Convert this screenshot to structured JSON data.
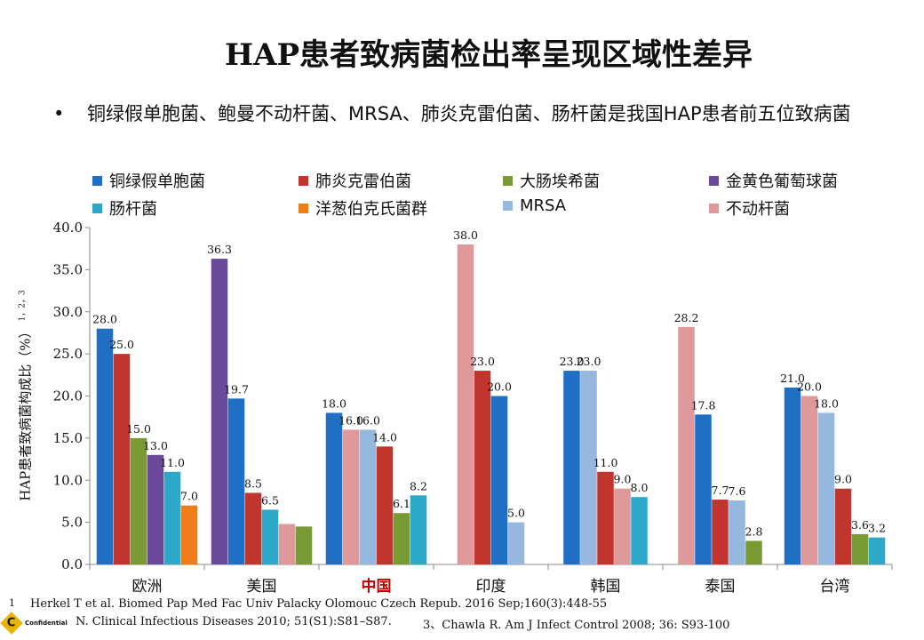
{
  "title": "HAP患者致病菌检出率呈现区域性差异",
  "bullet": {
    "dot": "•",
    "text": "铜绿假单胞菌、鲍曼不动杆菌、MRSA、肺炎克雷伯菌、肠杆菌是我国HAP患者前五位致病菌"
  },
  "legend": [
    {
      "label": "铜绿假单胞菌",
      "color": "#1f6fc5"
    },
    {
      "label": "肺炎克雷伯菌",
      "color": "#c0352e"
    },
    {
      "label": "大肠埃希菌",
      "color": "#7a9a33"
    },
    {
      "label": "金黄色葡萄球菌",
      "color": "#6a4a9a"
    },
    {
      "label": "肠杆菌",
      "color": "#2ea8c8"
    },
    {
      "label": "洋葱伯克氏菌群",
      "color": "#f07c1a"
    },
    {
      "label": "MRSA",
      "color": "#96b8de"
    },
    {
      "label": "不动杆菌",
      "color": "#e0999a"
    }
  ],
  "ylabel": {
    "main": "HAP患者致病菌构成比（%）",
    "sup": "1，2，3"
  },
  "chart_data": {
    "type": "bar",
    "ylim": [
      0,
      40
    ],
    "yticks": [
      "0.0",
      "5.0",
      "10.0",
      "15.0",
      "20.0",
      "25.0",
      "30.0",
      "35.0",
      "40.0"
    ],
    "categories": [
      "欧洲",
      "美国",
      "中国",
      "印度",
      "韩国",
      "泰国",
      "台湾"
    ],
    "highlight_category": "中国",
    "highlight_color": "#c00000",
    "groups": [
      {
        "category": "欧洲",
        "bars": [
          {
            "series": "铜绿假单胞菌",
            "value": 28.0,
            "label": "28.0"
          },
          {
            "series": "肺炎克雷伯菌",
            "value": 25.0,
            "label": "25.0"
          },
          {
            "series": "大肠埃希菌",
            "value": 15.0,
            "label": "15.0"
          },
          {
            "series": "金黄色葡萄球菌",
            "value": 13.0,
            "label": "13.0"
          },
          {
            "series": "肠杆菌",
            "value": 11.0,
            "label": "11.0"
          },
          {
            "series": "洋葱伯克氏菌群",
            "value": 7.0,
            "label": "7.0"
          }
        ]
      },
      {
        "category": "美国",
        "bars": [
          {
            "series": "金黄色葡萄球菌",
            "value": 36.3,
            "label": "36.3"
          },
          {
            "series": "铜绿假单胞菌",
            "value": 19.7,
            "label": "19.7"
          },
          {
            "series": "肺炎克雷伯菌",
            "value": 8.5,
            "label": "8.5"
          },
          {
            "series": "肠杆菌",
            "value": 6.5,
            "label": "6.5"
          },
          {
            "series": "不动杆菌",
            "value": 4.8,
            "label": ""
          },
          {
            "series": "大肠埃希菌",
            "value": 4.5,
            "label": ""
          }
        ]
      },
      {
        "category": "中国",
        "bars": [
          {
            "series": "铜绿假单胞菌",
            "value": 18.0,
            "label": "18.0"
          },
          {
            "series": "不动杆菌",
            "value": 16.0,
            "label": "16.0"
          },
          {
            "series": "MRSA",
            "value": 16.0,
            "label": "16.0"
          },
          {
            "series": "肺炎克雷伯菌",
            "value": 14.0,
            "label": "14.0"
          },
          {
            "series": "大肠埃希菌",
            "value": 6.1,
            "label": "6.1"
          },
          {
            "series": "肠杆菌",
            "value": 8.2,
            "label": "8.2"
          }
        ]
      },
      {
        "category": "印度",
        "bars": [
          {
            "series": "不动杆菌",
            "value": 38.0,
            "label": "38.0"
          },
          {
            "series": "肺炎克雷伯菌",
            "value": 23.0,
            "label": "23.0"
          },
          {
            "series": "铜绿假单胞菌",
            "value": 20.0,
            "label": "20.0"
          },
          {
            "series": "MRSA",
            "value": 5.0,
            "label": "5.0"
          }
        ]
      },
      {
        "category": "韩国",
        "bars": [
          {
            "series": "铜绿假单胞菌",
            "value": 23.0,
            "label": "23.0"
          },
          {
            "series": "MRSA",
            "value": 23.0,
            "label": "23.0"
          },
          {
            "series": "肺炎克雷伯菌",
            "value": 11.0,
            "label": "11.0"
          },
          {
            "series": "不动杆菌",
            "value": 9.0,
            "label": "9.0"
          },
          {
            "series": "肠杆菌",
            "value": 8.0,
            "label": "8.0"
          }
        ]
      },
      {
        "category": "泰国",
        "bars": [
          {
            "series": "不动杆菌",
            "value": 28.2,
            "label": "28.2"
          },
          {
            "series": "铜绿假单胞菌",
            "value": 17.8,
            "label": "17.8"
          },
          {
            "series": "肺炎克雷伯菌",
            "value": 7.7,
            "label": "7.7"
          },
          {
            "series": "MRSA",
            "value": 7.6,
            "label": "7.6"
          },
          {
            "series": "大肠埃希菌",
            "value": 2.8,
            "label": "2.8"
          }
        ]
      },
      {
        "category": "台湾",
        "bars": [
          {
            "series": "铜绿假单胞菌",
            "value": 21.0,
            "label": "21.0"
          },
          {
            "series": "不动杆菌",
            "value": 20.0,
            "label": "20.0"
          },
          {
            "series": "MRSA",
            "value": 18.0,
            "label": "18.0"
          },
          {
            "series": "肺炎克雷伯菌",
            "value": 9.0,
            "label": "9.0"
          },
          {
            "series": "大肠埃希菌",
            "value": 3.6,
            "label": "3.6"
          },
          {
            "series": "肠杆菌",
            "value": 3.2,
            "label": "3.2"
          }
        ]
      }
    ]
  },
  "footnotes": {
    "n1": "1",
    "ref1": "Herkel T et al. Biomed Pap Med Fac Univ Palacky Olomouc Czech Repub. 2016 Sep;160(3):448-55",
    "ref2": "N. Clinical Infectious Diseases 2010; 51(S1):S81–S87.",
    "ref3": "3、Chawla R. Am J Infect Control 2008; 36: S93-100"
  },
  "logo": {
    "letter": "C",
    "text": "Confidential"
  }
}
